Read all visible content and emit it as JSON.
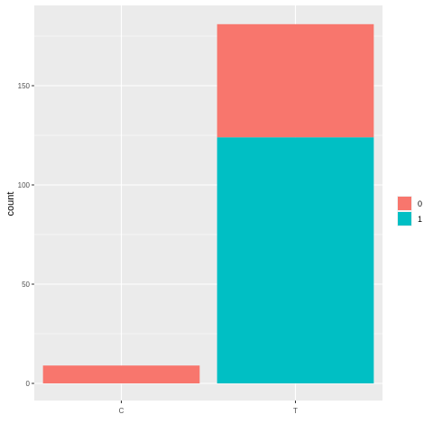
{
  "chart_data": {
    "type": "bar",
    "stacked": true,
    "categories": [
      "C",
      "T"
    ],
    "series": [
      {
        "name": "0",
        "values": [
          9,
          57
        ],
        "color": "#F8766D"
      },
      {
        "name": "1",
        "values": [
          0,
          124
        ],
        "color": "#00BFC4"
      }
    ],
    "xlabel": "",
    "ylabel": "count",
    "ylim": [
      0,
      190
    ],
    "yticks": [
      0,
      50,
      100,
      150
    ],
    "grid": true,
    "panel_background": "#EBEBEB",
    "legend": {
      "position": "right",
      "title": "",
      "order": [
        "0",
        "1"
      ]
    }
  }
}
